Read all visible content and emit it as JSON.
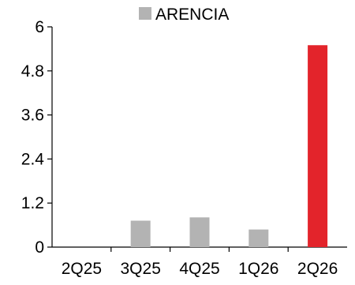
{
  "chart_data": {
    "type": "bar",
    "categories": [
      "2Q25",
      "3Q25",
      "4Q25",
      "1Q26",
      "2Q26"
    ],
    "series": [
      {
        "name": "ARENCIA",
        "values": [
          0,
          0.72,
          0.81,
          0.48,
          5.5
        ]
      }
    ],
    "bar_colors": [
      "#b3b3b3",
      "#b3b3b3",
      "#b3b3b3",
      "#b3b3b3",
      "#e3242b"
    ],
    "legend_color": "#b3b3b3",
    "ylim": [
      0,
      6
    ],
    "yticks": [
      "0",
      "1.2",
      "2.4",
      "3.6",
      "4.8",
      "6"
    ],
    "ytick_values": [
      0,
      1.2,
      2.4,
      3.6,
      4.8,
      6
    ],
    "legend_position": "top-center",
    "grid": false
  }
}
